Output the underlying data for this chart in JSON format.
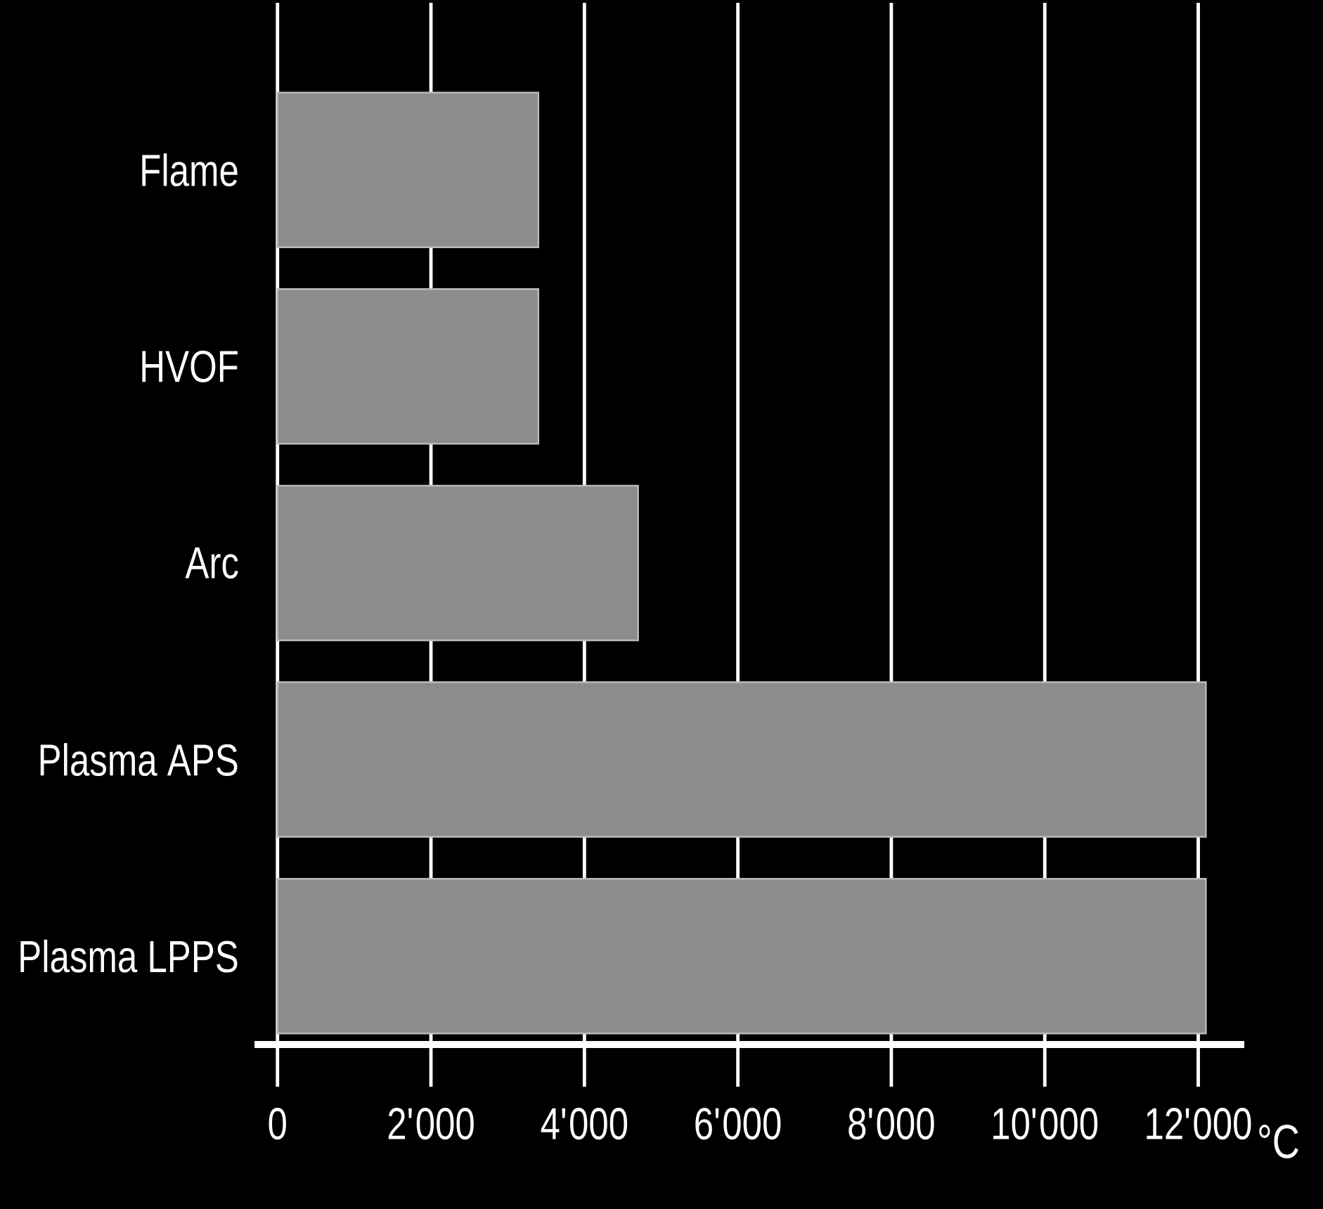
{
  "chart_data": {
    "type": "bar",
    "orientation": "horizontal",
    "categories": [
      "Flame",
      "HVOF",
      "Arc",
      "Plasma APS",
      "Plasma LPPS"
    ],
    "values": [
      3400,
      3400,
      4700,
      12100,
      12100
    ],
    "color": "#8c8c8c",
    "xlabel": "°C",
    "xlim": [
      -300,
      12600
    ],
    "xticks": [
      0,
      {
        "value": 2000,
        "label": "2'000"
      },
      {
        "value": 4000,
        "label": "4'000"
      },
      {
        "value": 6000,
        "label": "6'000"
      },
      {
        "value": 8000,
        "label": "8'000"
      },
      {
        "value": 10000,
        "label": "10'000"
      },
      {
        "value": 12000,
        "label": "12'000"
      }
    ],
    "grid": "x"
  }
}
